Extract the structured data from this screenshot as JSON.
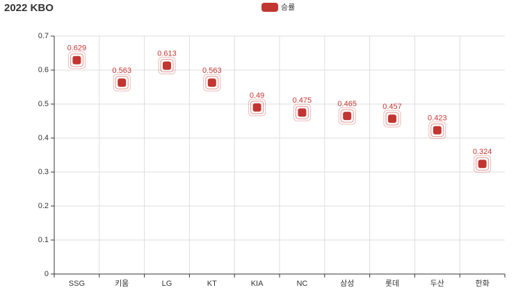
{
  "chart_data": {
    "type": "scatter",
    "title": "2022 KBO",
    "categories": [
      "SSG",
      "키움",
      "LG",
      "KT",
      "KIA",
      "NC",
      "삼성",
      "롯데",
      "두산",
      "한화"
    ],
    "series": [
      {
        "name": "승률",
        "color": "#c23531",
        "values": [
          0.629,
          0.563,
          0.613,
          0.563,
          0.49,
          0.475,
          0.465,
          0.457,
          0.423,
          0.324
        ]
      }
    ],
    "ylim": [
      0,
      0.7
    ],
    "yticks": [
      0,
      0.1,
      0.2,
      0.3,
      0.4,
      0.5,
      0.6,
      0.7
    ],
    "grid": true,
    "legend": "top"
  }
}
